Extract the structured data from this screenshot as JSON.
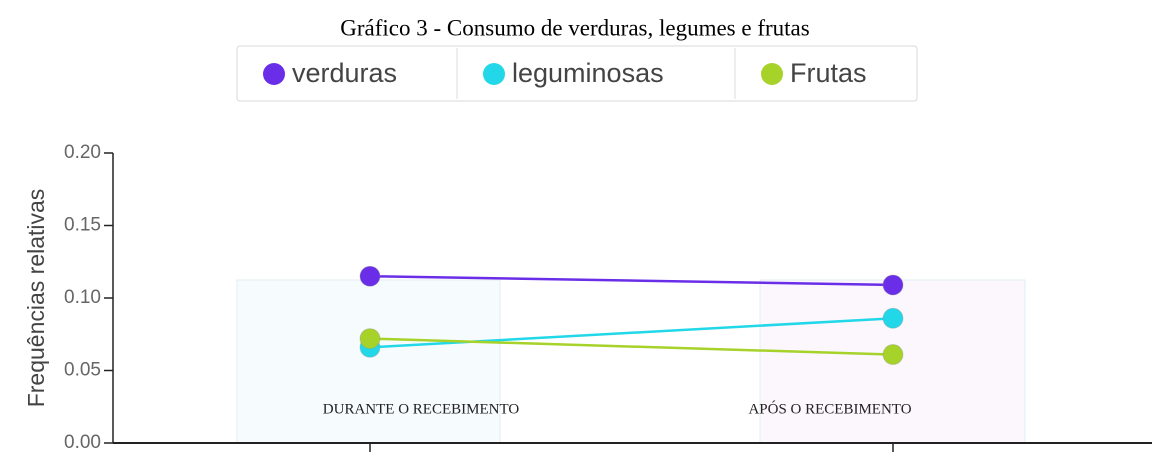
{
  "chart_data": {
    "type": "line",
    "title": "Gráfico 3 - Consumo de verduras, legumes e frutas",
    "y_label": "Frequências relativas",
    "categories": [
      "DURANTE O RECEBIMENTO",
      "APÓS O RECEBIMENTO"
    ],
    "series": [
      {
        "name": "verduras",
        "color": "#6a2ee8",
        "values": [
          0.115,
          0.109
        ]
      },
      {
        "name": "leguminosas",
        "color": "#22d8e8",
        "values": [
          0.066,
          0.086
        ]
      },
      {
        "name": "Frutas",
        "color": "#a6d22a",
        "values": [
          0.072,
          0.061
        ]
      }
    ],
    "ylim": [
      0,
      0.2
    ],
    "yticks": [
      {
        "value": 0,
        "label": "0.00"
      },
      {
        "value": 0.05,
        "label": "0.05"
      },
      {
        "value": 0.1,
        "label": "0.10"
      },
      {
        "value": 0.15,
        "label": "0.15"
      },
      {
        "value": 0.2,
        "label": "0.20"
      }
    ]
  }
}
